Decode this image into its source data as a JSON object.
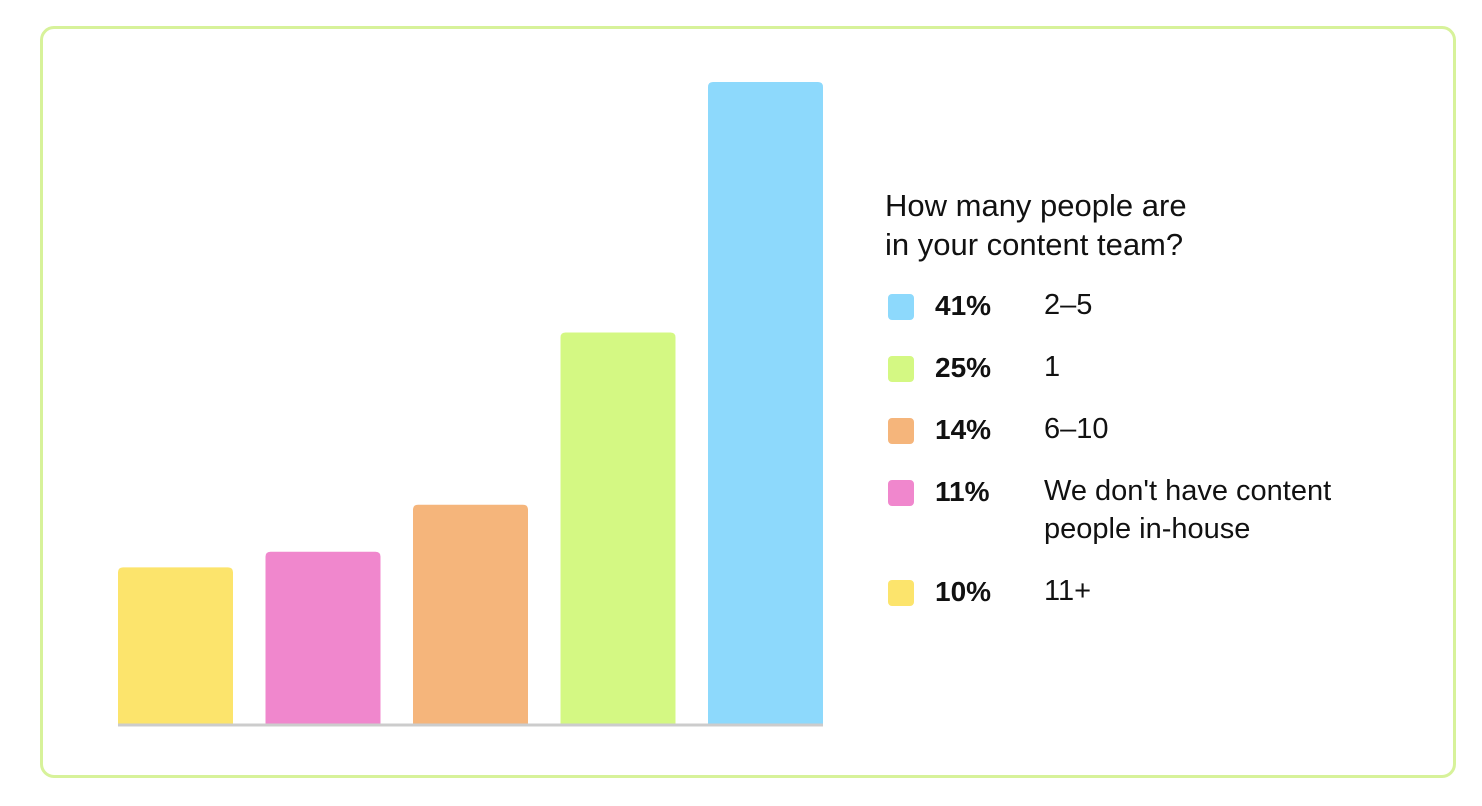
{
  "chart_data": {
    "type": "bar",
    "title": "How many people are in your content team?",
    "title_lines": [
      "How many people are",
      "in your content team?"
    ],
    "categories": [
      "11+",
      "We don't have content people in-house",
      "6–10",
      "1",
      "2–5"
    ],
    "values": [
      10,
      11,
      14,
      25,
      41
    ],
    "unit": "%",
    "ylim": [
      0,
      41
    ],
    "colors": [
      "#fce46c",
      "#f087cd",
      "#f5b57b",
      "#d4f883",
      "#8dd9fc"
    ],
    "axis_color": "#cccccc",
    "legend": [
      {
        "pct": "41%",
        "label": "2–5",
        "color": "#8dd9fc"
      },
      {
        "pct": "25%",
        "label": "1",
        "color": "#d4f883"
      },
      {
        "pct": "14%",
        "label": "6–10",
        "color": "#f5b57b"
      },
      {
        "pct": "11%",
        "label": "We don't have content people in-house",
        "label_lines": [
          "We don't have content",
          "people in-house"
        ],
        "color": "#f087cd"
      },
      {
        "pct": "10%",
        "label": "11+",
        "color": "#fce46c"
      }
    ],
    "legend_placement": "right",
    "grid": false
  }
}
